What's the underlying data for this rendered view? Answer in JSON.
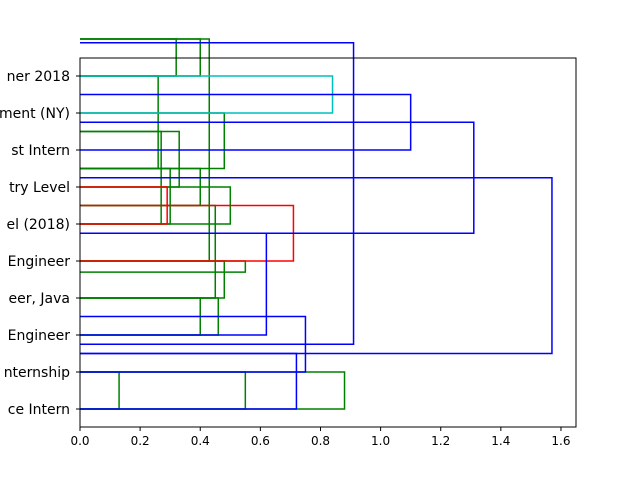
{
  "chart_data": {
    "type": "dendrogram",
    "orientation": "left",
    "title": "",
    "xlabel": "",
    "ylabel": "",
    "xlim": [
      0,
      1.65
    ],
    "grid": false,
    "xticks": [
      "0.0",
      "0.2",
      "0.4",
      "0.6",
      "0.8",
      "1.0",
      "1.2",
      "1.4",
      "1.6"
    ],
    "xtick_values": [
      0.0,
      0.2,
      0.4,
      0.6,
      0.8,
      1.0,
      1.2,
      1.4,
      1.6
    ],
    "leaf_labels": [
      "ce Intern",
      "nternship",
      "Engineer",
      "eer, Java",
      "Engineer",
      "el (2018)",
      "try Level",
      "st Intern",
      "ment (NY)",
      "ner 2018"
    ],
    "colors": {
      "green": "#008000",
      "red": "#ff0000",
      "cyan": "#00bfbf",
      "blue": "#0000ff"
    },
    "links": [
      {
        "color": "green",
        "height": 0.13,
        "y_left": 0,
        "y_right": 1,
        "y_top": 0.5
      },
      {
        "color": "green",
        "height": 0.55,
        "y_left": 0,
        "y_right": 1,
        "y_top": 0.8
      },
      {
        "color": "green",
        "height": 0.88,
        "y_left": 0,
        "y_right": 1,
        "y_top": 1.5
      },
      {
        "color": "green",
        "height": 0.4,
        "y_left": 2,
        "y_right": 3,
        "y_top": 2.2
      },
      {
        "color": "green",
        "height": 0.46,
        "y_left": 2,
        "y_right": 3,
        "y_top": 2.6
      },
      {
        "color": "green",
        "height": 0.48,
        "y_left": 3,
        "y_right": 4,
        "y_top": 3.7
      },
      {
        "color": "green",
        "height": 0.55,
        "y_left": 3.7,
        "y_right": 4,
        "y_top": 3.9
      },
      {
        "color": "green",
        "height": 0.45,
        "y_left": 3,
        "y_right": 5.5,
        "y_top": 5.0
      },
      {
        "color": "green",
        "height": 0.5,
        "y_left": 5,
        "y_right": 6,
        "y_top": 5.5
      },
      {
        "color": "green",
        "height": 0.27,
        "y_left": 5,
        "y_right": 7.5,
        "y_top": 7.5
      },
      {
        "color": "green",
        "height": 0.3,
        "y_left": 5,
        "y_right": 6.5,
        "y_top": 6.5
      },
      {
        "color": "green",
        "height": 0.33,
        "y_left": 6,
        "y_right": 7.5,
        "y_top": 7.4
      },
      {
        "color": "green",
        "height": 0.4,
        "y_left": 5.5,
        "y_right": 6.5,
        "y_top": 6.5
      },
      {
        "color": "green",
        "height": 0.48,
        "y_left": 6.5,
        "y_right": 8,
        "y_top": 7.0
      },
      {
        "color": "green",
        "height": 0.32,
        "y_left": 9,
        "y_right": 10,
        "y_top": 9.0
      },
      {
        "color": "green",
        "height": 0.26,
        "y_left": 6.5,
        "y_right": 9,
        "y_top": 9.5
      },
      {
        "color": "green",
        "height": 0.4,
        "y_left": 9,
        "y_right": 10,
        "y_top": 9.3
      },
      {
        "color": "green",
        "height": 0.43,
        "y_left": 4,
        "y_right": 10,
        "y_top": 10.0
      },
      {
        "color": "red",
        "height": 0.29,
        "y_left": 5,
        "y_right": 6,
        "y_top": 5.5
      },
      {
        "color": "red",
        "height": 0.71,
        "y_left": 4,
        "y_right": 5.5,
        "y_top": 4.75
      },
      {
        "color": "cyan",
        "height": 0.84,
        "y_left": 8,
        "y_right": 9,
        "y_top": 8.5
      },
      {
        "color": "blue",
        "height": 0.72,
        "y_left": 0,
        "y_right": 1.5,
        "y_top": 0.75
      },
      {
        "color": "blue",
        "height": 0.75,
        "y_left": 1.0,
        "y_right": 2.5,
        "y_top": 1.75
      },
      {
        "color": "blue",
        "height": 0.62,
        "y_left": 2.0,
        "y_right": 4.75,
        "y_top": 3.4
      },
      {
        "color": "blue",
        "height": 0.91,
        "y_left": 1.75,
        "y_right": 9.9,
        "y_top": 5.8
      },
      {
        "color": "blue",
        "height": 1.1,
        "y_left": 7,
        "y_right": 8.5,
        "y_top": 7.75
      },
      {
        "color": "blue",
        "height": 1.31,
        "y_left": 4.75,
        "y_right": 7.75,
        "y_top": 6.25
      },
      {
        "color": "blue",
        "height": 1.57,
        "y_left": 1.5,
        "y_right": 6.25,
        "y_top": 3.9
      }
    ]
  }
}
